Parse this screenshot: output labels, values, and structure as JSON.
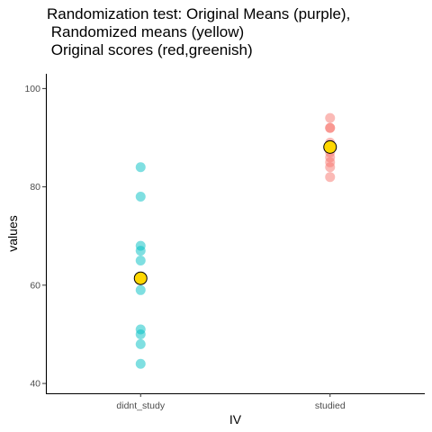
{
  "chart_data": {
    "type": "scatter",
    "title": "Randomization test: Original Means (purple),\n Randomized means (yellow)\n Original scores (red,greenish)",
    "xlabel": "IV",
    "ylabel": "values",
    "categories": [
      "didnt_study",
      "studied"
    ],
    "ylim": [
      38,
      103
    ],
    "yticks": [
      40,
      60,
      80,
      100
    ],
    "grid": false,
    "series": [
      {
        "category": "didnt_study",
        "color": "#00BFC4",
        "values": [
          84,
          78,
          68,
          67,
          65,
          59,
          51,
          50,
          48,
          44
        ]
      },
      {
        "category": "studied",
        "color": "#F8766D",
        "values": [
          94,
          92,
          92,
          89,
          88,
          87,
          86,
          85,
          84,
          82
        ]
      }
    ],
    "means": [
      {
        "category": "didnt_study",
        "value": 61.4,
        "color": "#FFD700"
      },
      {
        "category": "studied",
        "value": 88.1,
        "color": "#FFD700"
      }
    ]
  }
}
